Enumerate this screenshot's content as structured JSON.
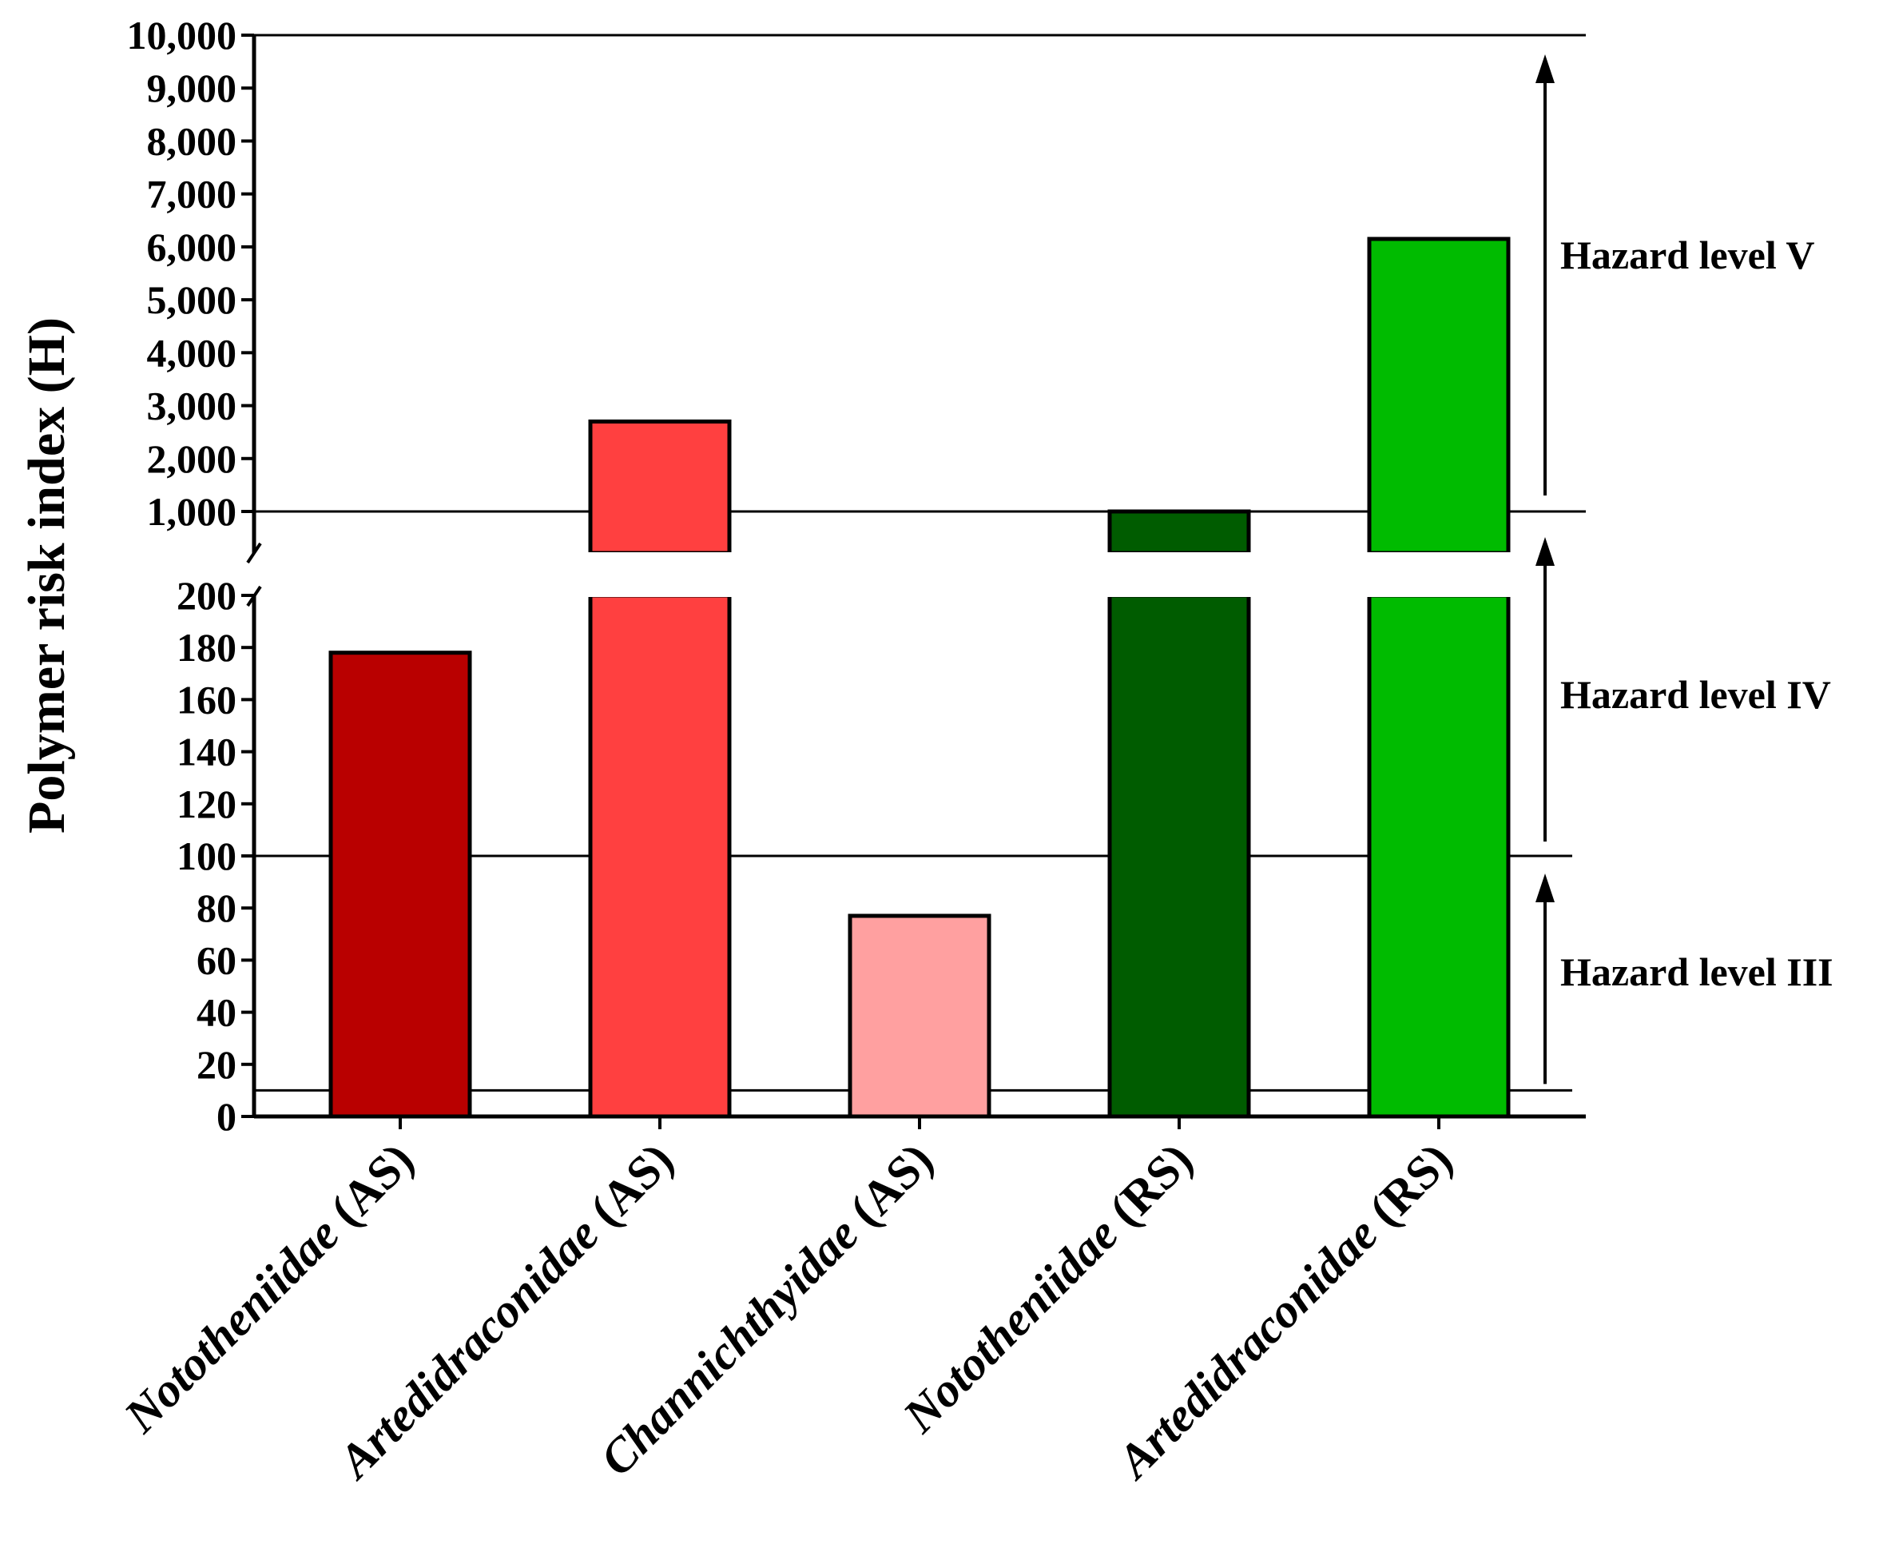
{
  "chart_data": {
    "type": "bar",
    "ylabel": "Polymer risk index (H)",
    "categories": [
      {
        "name": "Nototheniidae",
        "suffix": " (AS)"
      },
      {
        "name": "Artedidraconidae",
        "suffix": " (AS)"
      },
      {
        "name": "Channichthyidae",
        "suffix": " (AS)"
      },
      {
        "name": "Nototheniidae",
        "suffix": " (RS)"
      },
      {
        "name": "Artedidraconidae",
        "suffix": " (RS)"
      }
    ],
    "values": [
      178,
      2700,
      77,
      1000,
      6150
    ],
    "colors": [
      "#b90000",
      "#ff4040",
      "#ffa0a0",
      "#005c00",
      "#00bb00"
    ],
    "y_axis_broken": true,
    "lower_segment": {
      "ylim": [
        0,
        200
      ],
      "ticks": [
        0,
        20,
        40,
        60,
        80,
        100,
        120,
        140,
        160,
        180,
        200
      ]
    },
    "upper_segment": {
      "ylim": [
        1000,
        10000
      ],
      "ticks": [
        1000,
        2000,
        3000,
        4000,
        5000,
        6000,
        7000,
        8000,
        9000,
        10000
      ]
    },
    "threshold_lines": [
      10,
      100,
      1000,
      10000
    ],
    "hazard_levels": [
      {
        "label": "Hazard level III",
        "from": 10,
        "to": 100
      },
      {
        "label": "Hazard level IV",
        "from": 100,
        "to": 1000
      },
      {
        "label": "Hazard level V",
        "from": 1000,
        "to": 10000
      }
    ]
  }
}
